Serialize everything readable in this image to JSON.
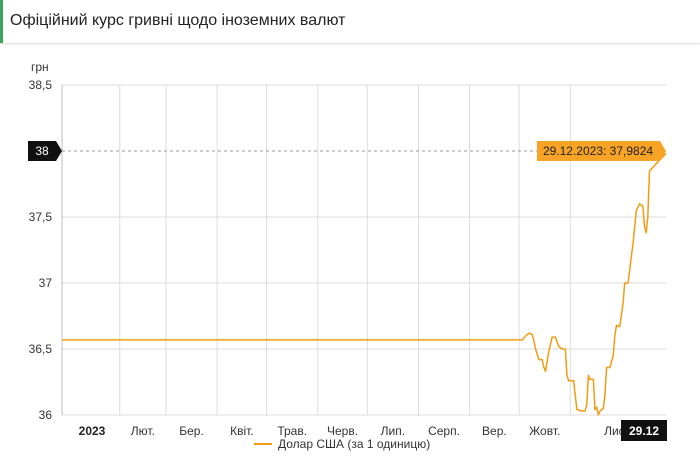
{
  "header": {
    "title": "Офіційний курс гривні щодо іноземних валют"
  },
  "colors": {
    "line": "#f39c12",
    "tooltip_bg": "#f7a325",
    "grid": "#dcdcdc",
    "badge_bg": "#111111"
  },
  "chart_data": {
    "type": "line",
    "ylabel": "грн",
    "ylim": [
      36,
      38.5
    ],
    "yticks": [
      36,
      36.5,
      37,
      37.5,
      38,
      38.5
    ],
    "ytick_labels": [
      "36",
      "36,5",
      "37",
      "37,5",
      "38",
      "38,5"
    ],
    "xtick_labels": [
      "2023",
      "Лют.",
      "Бер.",
      "Квіт.",
      "Трав.",
      "Черв.",
      "Лип.",
      "Серп.",
      "Вер.",
      "Жовт.",
      "Лист.",
      "29.12"
    ],
    "xtick_dates": [
      "2023-01-01",
      "2023-02-01",
      "2023-03-01",
      "2023-04-01",
      "2023-05-01",
      "2023-06-01",
      "2023-07-01",
      "2023-08-01",
      "2023-09-01",
      "2023-10-01",
      "2023-11-01",
      "2023-12-29"
    ],
    "xlim": [
      "2022-12-28",
      "2023-12-29"
    ],
    "reference_line": {
      "y": 38,
      "label": "38",
      "style": "dashed"
    },
    "highlight": {
      "label": "29.12.2023: 37,9824",
      "date": "2023-12-29",
      "value": 37.9824
    },
    "legend": "bottom-center",
    "grid": true,
    "series": [
      {
        "name": "Долар США (за 1 одиницю)",
        "points": [
          [
            "2022-12-28",
            36.5686
          ],
          [
            "2023-01-15",
            36.5686
          ],
          [
            "2023-02-15",
            36.5686
          ],
          [
            "2023-03-15",
            36.5686
          ],
          [
            "2023-04-15",
            36.5686
          ],
          [
            "2023-05-15",
            36.5686
          ],
          [
            "2023-06-15",
            36.5686
          ],
          [
            "2023-07-15",
            36.5686
          ],
          [
            "2023-08-15",
            36.5686
          ],
          [
            "2023-09-15",
            36.5686
          ],
          [
            "2023-10-03",
            36.5686
          ],
          [
            "2023-10-05",
            36.6
          ],
          [
            "2023-10-07",
            36.62
          ],
          [
            "2023-10-09",
            36.61
          ],
          [
            "2023-10-11",
            36.5
          ],
          [
            "2023-10-13",
            36.42
          ],
          [
            "2023-10-15",
            36.42
          ],
          [
            "2023-10-16",
            36.36
          ],
          [
            "2023-10-17",
            36.33
          ],
          [
            "2023-10-19",
            36.48
          ],
          [
            "2023-10-21",
            36.59
          ],
          [
            "2023-10-23",
            36.59
          ],
          [
            "2023-10-25",
            36.52
          ],
          [
            "2023-10-27",
            36.5
          ],
          [
            "2023-10-29",
            36.5
          ],
          [
            "2023-10-30",
            36.3
          ],
          [
            "2023-10-31",
            36.26
          ],
          [
            "2023-11-02",
            36.26
          ],
          [
            "2023-11-03",
            36.26
          ],
          [
            "2023-11-05",
            36.04
          ],
          [
            "2023-11-08",
            36.03
          ],
          [
            "2023-11-10",
            36.03
          ],
          [
            "2023-11-11",
            36.08
          ],
          [
            "2023-11-12",
            36.3
          ],
          [
            "2023-11-13",
            36.27
          ],
          [
            "2023-11-15",
            36.27
          ],
          [
            "2023-11-16",
            36.04
          ],
          [
            "2023-11-17",
            36.06
          ],
          [
            "2023-11-18",
            36.0
          ],
          [
            "2023-11-19",
            36.03
          ],
          [
            "2023-11-20",
            36.04
          ],
          [
            "2023-11-21",
            36.05
          ],
          [
            "2023-11-22",
            36.15
          ],
          [
            "2023-11-23",
            36.36
          ],
          [
            "2023-11-25",
            36.36
          ],
          [
            "2023-11-27",
            36.45
          ],
          [
            "2023-11-28",
            36.6
          ],
          [
            "2023-11-29",
            36.68
          ],
          [
            "2023-12-01",
            36.67
          ],
          [
            "2023-12-03",
            36.85
          ],
          [
            "2023-12-04",
            37.0
          ],
          [
            "2023-12-06",
            37.0
          ],
          [
            "2023-12-07",
            37.1
          ],
          [
            "2023-12-09",
            37.3
          ],
          [
            "2023-12-11",
            37.55
          ],
          [
            "2023-12-13",
            37.6
          ],
          [
            "2023-12-15",
            37.58
          ],
          [
            "2023-12-16",
            37.43
          ],
          [
            "2023-12-17",
            37.38
          ],
          [
            "2023-12-18",
            37.5
          ],
          [
            "2023-12-19",
            37.85
          ],
          [
            "2023-12-29",
            37.9824
          ]
        ]
      }
    ]
  }
}
